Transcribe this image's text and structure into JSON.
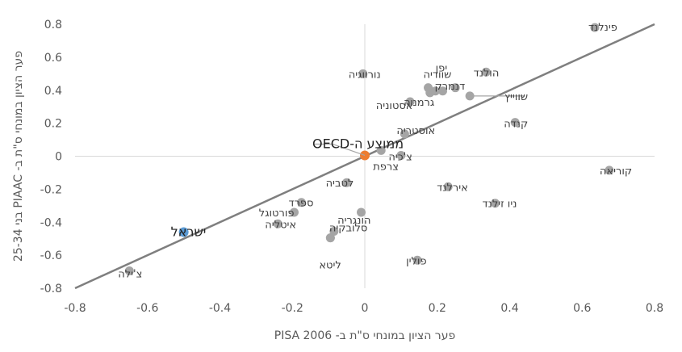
{
  "chart_data": {
    "type": "scatter",
    "xlabel": "פער הציון במונחי ס\"ת ב- PISA 2006",
    "ylabel": "פער הציון במונחי ס\"ת ב- PIAAC בני 25-34",
    "xlim": [
      -0.8,
      0.8
    ],
    "ylim": [
      -0.8,
      0.8
    ],
    "xticks": [
      "-0.8",
      "-0.6",
      "-0.4",
      "-0.2",
      "0",
      "0.2",
      "0.4",
      "0.6",
      "0.8"
    ],
    "yticks": [
      "0.8",
      "0.6",
      "0.4",
      "0.2",
      "0",
      "-0.2",
      "-0.4",
      "-0.6",
      "-0.8"
    ],
    "grid": false,
    "trendline": [
      [
        -0.8,
        -0.8
      ],
      [
        0.8,
        0.8
      ]
    ],
    "colors": {
      "default": "#a5a5a5",
      "israel": "#5b9bd5",
      "oecd": "#ed7d31",
      "trend": "#7f7f7f"
    },
    "points": [
      {
        "name": "פינלנד",
        "x": 0.635,
        "y": 0.78
      },
      {
        "name": "הולנד",
        "x": 0.335,
        "y": 0.51
      },
      {
        "name": "יפן",
        "x": 0.25,
        "y": 0.415
      },
      {
        "name": "שוודיה",
        "x": 0.175,
        "y": 0.415
      },
      {
        "name": "דנמרק",
        "x": 0.215,
        "y": 0.395
      },
      {
        "name": "",
        "x": 0.18,
        "y": 0.385
      },
      {
        "name": "נורווגיה",
        "x": -0.005,
        "y": 0.5
      },
      {
        "name": "גרמניה",
        "x": 0.125,
        "y": 0.33
      },
      {
        "name": "אסטוניה",
        "x": 0.195,
        "y": 0.395
      },
      {
        "name": "שווייץ",
        "x": 0.29,
        "y": 0.365
      },
      {
        "name": "קנדה",
        "x": 0.415,
        "y": 0.205
      },
      {
        "name": "אוסטריה",
        "x": 0.11,
        "y": 0.135
      },
      {
        "name": "צ'כיה",
        "x": 0.1,
        "y": 0.005
      },
      {
        "name": "צרפת",
        "x": 0.045,
        "y": 0.035
      },
      {
        "name": "ממוצע ה-OECD",
        "x": 0.0,
        "y": 0.005,
        "kind": "oecd"
      },
      {
        "name": "קוריאה",
        "x": 0.675,
        "y": -0.085
      },
      {
        "name": "לטביה",
        "x": -0.05,
        "y": -0.16
      },
      {
        "name": "אירלנד",
        "x": 0.23,
        "y": -0.185
      },
      {
        "name": "ניו זילנד",
        "x": 0.36,
        "y": -0.285
      },
      {
        "name": "ספרד",
        "x": -0.175,
        "y": -0.28
      },
      {
        "name": "פורטוגל",
        "x": -0.195,
        "y": -0.34
      },
      {
        "name": "הונגריה",
        "x": -0.01,
        "y": -0.34
      },
      {
        "name": "איטליה",
        "x": -0.24,
        "y": -0.41
      },
      {
        "name": "סלובקיה",
        "x": -0.085,
        "y": -0.455
      },
      {
        "name": "",
        "x": -0.095,
        "y": -0.495
      },
      {
        "name": "ישראל",
        "x": -0.5,
        "y": -0.46,
        "kind": "israel"
      },
      {
        "name": "ליטא",
        "x": -0.095,
        "y": -0.495
      },
      {
        "name": "פולין",
        "x": 0.145,
        "y": -0.63
      },
      {
        "name": "צ'ילה",
        "x": -0.65,
        "y": -0.695
      }
    ]
  }
}
